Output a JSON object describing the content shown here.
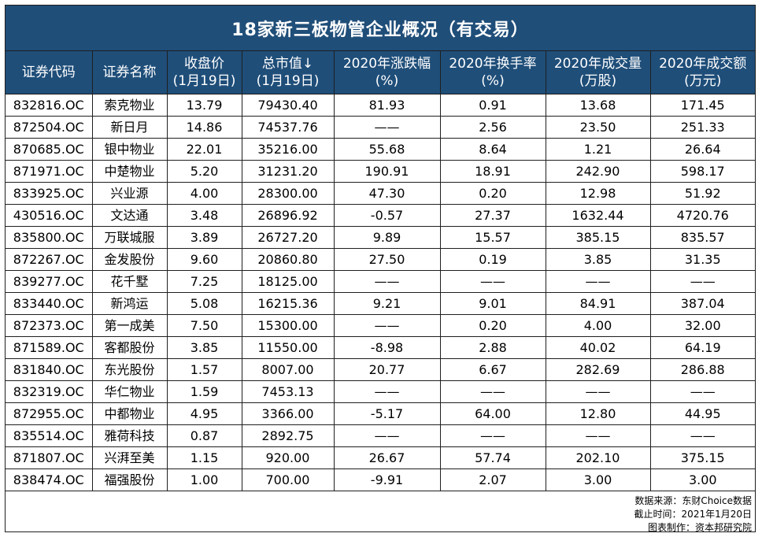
{
  "title": "18家新三板物管企业概况（有交易）",
  "headers": [
    {
      "l1": "证券代码",
      "l2": ""
    },
    {
      "l1": "证券名称",
      "l2": ""
    },
    {
      "l1": "收盘价",
      "l2": "(1月19日)"
    },
    {
      "l1": "总市值↓",
      "l2": "(1月19日)"
    },
    {
      "l1": "2020年涨跌幅",
      "l2": "(%)"
    },
    {
      "l1": "2020年换手率",
      "l2": "(%)"
    },
    {
      "l1": "2020年成交量",
      "l2": "(万股)"
    },
    {
      "l1": "2020年成交额",
      "l2": "(万元)"
    }
  ],
  "rows": [
    [
      "832816.OC",
      "索克物业",
      "13.79",
      "79430.40",
      "81.93",
      "0.91",
      "13.68",
      "171.45"
    ],
    [
      "872504.OC",
      "新日月",
      "14.86",
      "74537.76",
      "——",
      "2.56",
      "23.50",
      "251.33"
    ],
    [
      "870685.OC",
      "银中物业",
      "22.01",
      "35216.00",
      "55.68",
      "8.64",
      "1.21",
      "26.64"
    ],
    [
      "871971.OC",
      "中楚物业",
      "5.20",
      "31231.20",
      "190.91",
      "18.91",
      "242.90",
      "598.17"
    ],
    [
      "833925.OC",
      "兴业源",
      "4.00",
      "28300.00",
      "47.30",
      "0.20",
      "12.98",
      "51.92"
    ],
    [
      "430516.OC",
      "文达通",
      "3.48",
      "26896.92",
      "-0.57",
      "27.37",
      "1632.44",
      "4720.76"
    ],
    [
      "835800.OC",
      "万联城服",
      "3.89",
      "26727.20",
      "9.89",
      "15.57",
      "385.15",
      "835.57"
    ],
    [
      "872267.OC",
      "金发股份",
      "9.60",
      "20860.80",
      "27.50",
      "0.19",
      "3.85",
      "31.35"
    ],
    [
      "839277.OC",
      "花千墅",
      "7.25",
      "18125.00",
      "——",
      "——",
      "——",
      "——"
    ],
    [
      "833440.OC",
      "新鸿运",
      "5.08",
      "16215.36",
      "9.21",
      "9.01",
      "84.91",
      "387.04"
    ],
    [
      "872373.OC",
      "第一成美",
      "7.50",
      "15300.00",
      "——",
      "0.20",
      "4.00",
      "32.00"
    ],
    [
      "871589.OC",
      "客都股份",
      "3.85",
      "11550.00",
      "-8.98",
      "2.88",
      "40.02",
      "64.19"
    ],
    [
      "831840.OC",
      "东光股份",
      "1.57",
      "8007.00",
      "20.77",
      "6.67",
      "282.69",
      "286.88"
    ],
    [
      "832319.OC",
      "华仁物业",
      "1.59",
      "7453.13",
      "——",
      "——",
      "——",
      "——"
    ],
    [
      "872955.OC",
      "中都物业",
      "4.95",
      "3366.00",
      "-5.17",
      "64.00",
      "12.80",
      "44.95"
    ],
    [
      "835514.OC",
      "雅荷科技",
      "0.87",
      "2892.75",
      "——",
      "——",
      "——",
      "——"
    ],
    [
      "871807.OC",
      "兴湃至美",
      "1.15",
      "920.00",
      "26.67",
      "57.74",
      "202.10",
      "375.15"
    ],
    [
      "838474.OC",
      "福强股份",
      "1.00",
      "700.00",
      "-9.91",
      "2.07",
      "3.00",
      "3.00"
    ]
  ],
  "footer": {
    "source": "数据来源：东财Choice数据",
    "cutoff": "截止时间：2021年1月20日",
    "maker": "图表制作：资本邦研究院"
  },
  "colors": {
    "header_bg": "#1f4e79",
    "header_text": "#ffffff",
    "border": "#1f1f1f"
  }
}
